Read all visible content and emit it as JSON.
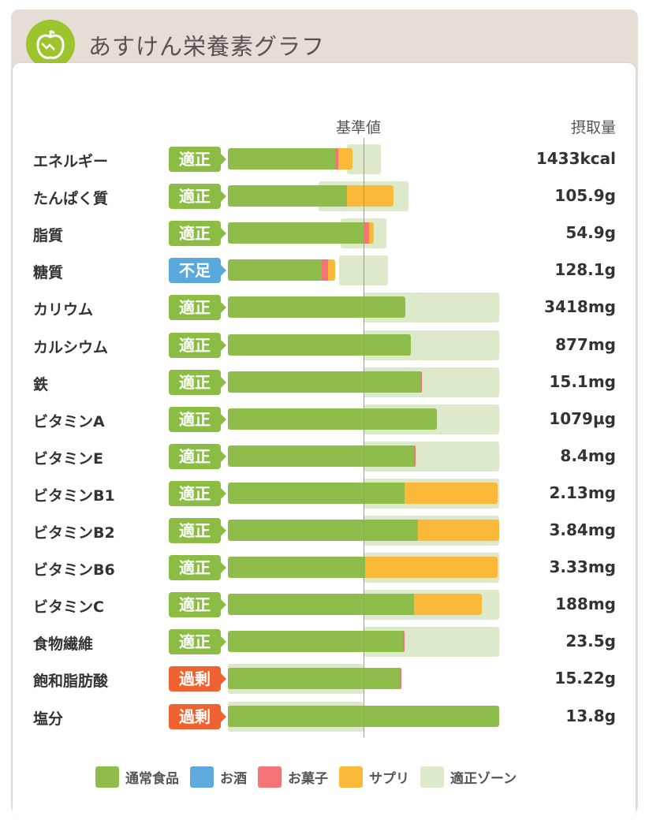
{
  "header": {
    "title": "あすけん栄養素グラフ",
    "logo": "apple-logo"
  },
  "chart_data": {
    "type": "bar",
    "title": "あすけん栄養素グラフ",
    "column_headers": {
      "standard": "基準値",
      "intake": "摂取量"
    },
    "unit": "percent of standard value",
    "xlim": [
      0,
      200
    ],
    "legend": [
      {
        "key": "food",
        "label": "通常食品",
        "color": "#8fbd4c"
      },
      {
        "key": "alcohol",
        "label": "お酒",
        "color": "#5ea9dd"
      },
      {
        "key": "sweets",
        "label": "お菓子",
        "color": "#f47478"
      },
      {
        "key": "supplement",
        "label": "サプリ",
        "color": "#fbb93a"
      },
      {
        "key": "zone",
        "label": "適正ゾーン",
        "color": "#dde9cb"
      }
    ],
    "status_colors": {
      "適正": "#8bbd45",
      "不足": "#5aa9dc",
      "過剰": "#ef6230"
    },
    "rows": [
      {
        "name": "エネルギー",
        "status": "適正",
        "food": 79,
        "sweets": 2.3,
        "supplement": 10.5,
        "zone": [
          88,
          113
        ],
        "value": "1433kcal"
      },
      {
        "name": "たんぱく質",
        "status": "適正",
        "food": 88,
        "sweets": 0,
        "supplement": 34,
        "zone": [
          67,
          133
        ],
        "value": "105.9g"
      },
      {
        "name": "脂質",
        "status": "適正",
        "food": 100.5,
        "sweets": 3.5,
        "supplement": 3.5,
        "zone": [
          83,
          117
        ],
        "value": "54.9g"
      },
      {
        "name": "糖質",
        "status": "不足",
        "food": 69,
        "sweets": 5,
        "supplement": 5,
        "zone": [
          82,
          118
        ],
        "value": "128.1g"
      },
      {
        "name": "カリウム",
        "status": "適正",
        "food": 131,
        "sweets": 0,
        "supplement": 0,
        "zone": [
          100,
          200
        ],
        "value": "3418mg"
      },
      {
        "name": "カルシウム",
        "status": "適正",
        "food": 135,
        "sweets": 0,
        "supplement": 0,
        "zone": [
          100,
          200
        ],
        "value": "877mg"
      },
      {
        "name": "鉄",
        "status": "適正",
        "food": 142,
        "sweets": 1,
        "supplement": 0,
        "zone": [
          100,
          200
        ],
        "value": "15.1mg"
      },
      {
        "name": "ビタミンA",
        "status": "適正",
        "food": 154,
        "sweets": 0,
        "supplement": 0,
        "zone": [
          100,
          200
        ],
        "value": "1079µg"
      },
      {
        "name": "ビタミンE",
        "status": "適正",
        "food": 137,
        "sweets": 1.5,
        "supplement": 0,
        "zone": [
          100,
          200
        ],
        "value": "8.4mg"
      },
      {
        "name": "ビタミンB1",
        "status": "適正",
        "food": 130,
        "sweets": 0,
        "supplement": 69,
        "zone": [
          100,
          200
        ],
        "value": "2.13mg"
      },
      {
        "name": "ビタミンB2",
        "status": "適正",
        "food": 140,
        "sweets": 0,
        "supplement": 60,
        "zone": [
          100,
          200
        ],
        "value": "3.84mg"
      },
      {
        "name": "ビタミンB6",
        "status": "適正",
        "food": 101,
        "sweets": 0,
        "supplement": 98,
        "zone": [
          100,
          200
        ],
        "value": "3.33mg"
      },
      {
        "name": "ビタミンC",
        "status": "適正",
        "food": 137,
        "sweets": 0,
        "supplement": 50,
        "zone": [
          100,
          200
        ],
        "value": "188mg"
      },
      {
        "name": "食物繊維",
        "status": "適正",
        "food": 129,
        "sweets": 1,
        "supplement": 0,
        "zone": [
          100,
          200
        ],
        "value": "23.5g"
      },
      {
        "name": "飽和脂肪酸",
        "status": "過剰",
        "food": 127,
        "sweets": 1,
        "supplement": 0,
        "zone": [
          0,
          100
        ],
        "value": "15.22g"
      },
      {
        "name": "塩分",
        "status": "過剰",
        "food": 200,
        "sweets": 0,
        "supplement": 0,
        "zone": [
          0,
          100
        ],
        "value": "13.8g"
      }
    ]
  }
}
